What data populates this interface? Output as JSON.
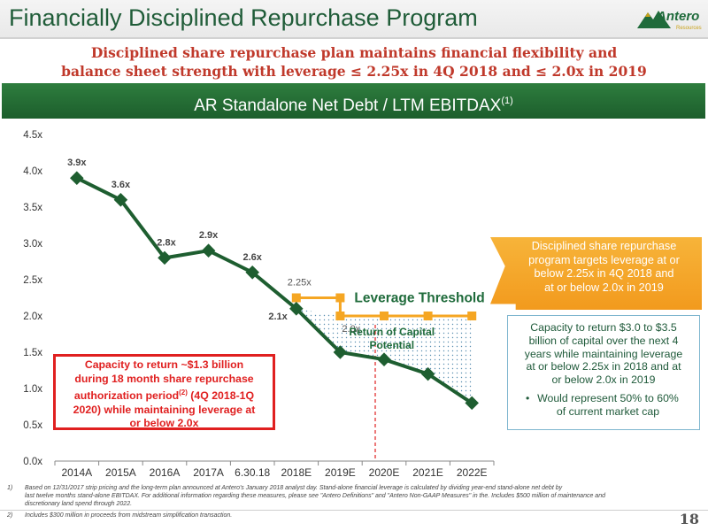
{
  "slide": {
    "title": "Financially Disciplined Repurchase Program",
    "subtitle_line1": "Disciplined share repurchase plan maintains financial flexibility and",
    "subtitle_line2": "balance sheet strength with leverage ≤ 2.25x in 4Q 2018 and ≤ 2.0x in 2019",
    "header_text": "AR Standalone Net Debt / LTM EBITDAX",
    "header_sup": "(1)",
    "logo_text": "Antero",
    "logo_sub": "Resources",
    "page_number": "18"
  },
  "chart_data": {
    "type": "line",
    "title": "AR Standalone Net Debt / LTM EBITDAX",
    "categories": [
      "2014A",
      "2015A",
      "2016A",
      "2017A",
      "6.30.18",
      "2018E",
      "2019E",
      "2020E",
      "2021E",
      "2022E"
    ],
    "series": [
      {
        "name": "",
        "values": [
          3.9,
          3.6,
          2.8,
          2.9,
          2.6,
          2.1,
          1.5,
          1.4,
          1.2,
          0.8
        ],
        "color": "#1e5e30"
      },
      {
        "name": "Leverage Threshold",
        "x": [
          "2018E",
          "2019E",
          "2020E",
          "2021E",
          "2022E"
        ],
        "values": [
          2.25,
          2.0,
          2.0,
          2.0,
          2.0
        ],
        "step_from": "2018E",
        "color": "#f5a623"
      }
    ],
    "data_labels": [
      "3.9x",
      "3.6x",
      "2.8x",
      "2.9x",
      "2.6x",
      "2.1x",
      "",
      "",
      "",
      ""
    ],
    "threshold_labels": [
      "2.25x",
      "2.0x"
    ],
    "y_ticks": [
      "0.0x",
      "0.5x",
      "1.0x",
      "1.5x",
      "2.0x",
      "2.5x",
      "3.0x",
      "3.5x",
      "4.0x",
      "4.5x"
    ],
    "ylim": [
      0,
      4.5
    ],
    "grid": false,
    "annotations": {
      "leverage_threshold": "Leverage Threshold",
      "return_of_capital_line1": "Return of Capital",
      "return_of_capital_line2": "Potential"
    }
  },
  "callouts": {
    "red_line1": "Capacity to return ~$1.3 billion",
    "red_line2": "during 18 month share repurchase",
    "red_line3_pre": "authorization period",
    "red_line3_sup": "(2)",
    "red_line3_post": " (4Q 2018-1Q",
    "red_line4": "2020) while maintaining leverage at",
    "red_line5": "or below 2.0x",
    "orange_line1": "Disciplined share repurchase",
    "orange_line2": "program targets leverage at or",
    "orange_line3": "below 2.25x in 4Q 2018 and",
    "orange_line4": "at or below 2.0x in 2019",
    "blue_line1": "Capacity to return $3.0 to $3.5",
    "blue_line2": "billion of capital over the next 4",
    "blue_line3": "years while maintaining leverage",
    "blue_line4": "at or below 2.25x in 2018 and at",
    "blue_line5": "or below 2.0x in 2019",
    "blue_bullet": "•",
    "blue_bullet_line1": "Would represent 50% to 60%",
    "blue_bullet_line2": "of current market cap"
  },
  "footnotes": {
    "fn1_num": "1)",
    "fn1_line1": "Based on 12/31/2017 strip pricing and the long-term plan announced at Antero's January 2018 analyst day. Stand-alone financial leverage is calculated by dividing year-end stand-alone net debt by",
    "fn1_line2": "last twelve months stand-alone EBITDAX. For additional information regarding these measures, please see \"Antero Definitions\" and \"Antero Non-GAAP Measures\" in the. Includes $500 million of maintenance and",
    "fn1_line3": "discretionary land spend through 2022.",
    "fn2_num": "2)",
    "fn2_text": "Includes $300 million in proceeds from midstream simplification transaction."
  }
}
